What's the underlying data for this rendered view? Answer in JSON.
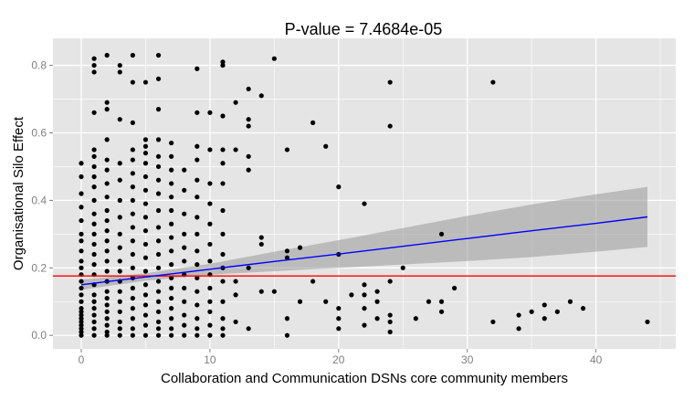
{
  "chart_data": {
    "type": "scatter",
    "title": "P-value = 7.4684e-05",
    "xlabel": "Collaboration and Communication DSNs core community members",
    "ylabel": "Organisational Silo Effect",
    "xlim": [
      -2.2,
      46.2
    ],
    "ylim": [
      -0.04,
      0.88
    ],
    "x_ticks": [
      0,
      10,
      20,
      30,
      40
    ],
    "x_tick_labels": [
      "0",
      "10",
      "20",
      "30",
      "40"
    ],
    "y_ticks": [
      0.0,
      0.2,
      0.4,
      0.6,
      0.8
    ],
    "y_tick_labels": [
      "0.0",
      "0.2",
      "0.4",
      "0.6",
      "0.8"
    ],
    "grid": true,
    "background_color": "#e5e5e5",
    "grid_color": "#ffffff",
    "point_color": "#000000",
    "hline": {
      "y": 0.176,
      "color": "#ff0000"
    },
    "regression": {
      "color": "#0000ff",
      "band_color": "#999999",
      "x": [
        0,
        5,
        10,
        15,
        20,
        25,
        30,
        35,
        40,
        44
      ],
      "y": [
        0.15,
        0.173,
        0.196,
        0.219,
        0.241,
        0.264,
        0.287,
        0.31,
        0.332,
        0.351
      ],
      "lower": [
        0.135,
        0.162,
        0.18,
        0.19,
        0.2,
        0.21,
        0.22,
        0.232,
        0.248,
        0.262
      ],
      "upper": [
        0.165,
        0.184,
        0.212,
        0.248,
        0.282,
        0.318,
        0.354,
        0.388,
        0.418,
        0.44
      ]
    },
    "points": [
      [
        0,
        0.0
      ],
      [
        0,
        0.01
      ],
      [
        0,
        0.02
      ],
      [
        0,
        0.03
      ],
      [
        0,
        0.04
      ],
      [
        0,
        0.05
      ],
      [
        0,
        0.06
      ],
      [
        0,
        0.07
      ],
      [
        0,
        0.08
      ],
      [
        0,
        0.1
      ],
      [
        0,
        0.12
      ],
      [
        0,
        0.14
      ],
      [
        0,
        0.16
      ],
      [
        0,
        0.18
      ],
      [
        0,
        0.2
      ],
      [
        0,
        0.22
      ],
      [
        0,
        0.25
      ],
      [
        0,
        0.28
      ],
      [
        0,
        0.3
      ],
      [
        0,
        0.34
      ],
      [
        0,
        0.38
      ],
      [
        0,
        0.42
      ],
      [
        0,
        0.47
      ],
      [
        0,
        0.51
      ],
      [
        1,
        0.0
      ],
      [
        1,
        0.02
      ],
      [
        1,
        0.04
      ],
      [
        1,
        0.06
      ],
      [
        1,
        0.08
      ],
      [
        1,
        0.1
      ],
      [
        1,
        0.12
      ],
      [
        1,
        0.15
      ],
      [
        1,
        0.18
      ],
      [
        1,
        0.21
      ],
      [
        1,
        0.24
      ],
      [
        1,
        0.27
      ],
      [
        1,
        0.3
      ],
      [
        1,
        0.33
      ],
      [
        1,
        0.36
      ],
      [
        1,
        0.4
      ],
      [
        1,
        0.44
      ],
      [
        1,
        0.47
      ],
      [
        1,
        0.5
      ],
      [
        1,
        0.53
      ],
      [
        1,
        0.55
      ],
      [
        1,
        0.66
      ],
      [
        1,
        0.78
      ],
      [
        1,
        0.8
      ],
      [
        1,
        0.82
      ],
      [
        2,
        0.0
      ],
      [
        2,
        0.01
      ],
      [
        2,
        0.03
      ],
      [
        2,
        0.05
      ],
      [
        2,
        0.07
      ],
      [
        2,
        0.09
      ],
      [
        2,
        0.11
      ],
      [
        2,
        0.13
      ],
      [
        2,
        0.16
      ],
      [
        2,
        0.19
      ],
      [
        2,
        0.22
      ],
      [
        2,
        0.25
      ],
      [
        2,
        0.28
      ],
      [
        2,
        0.31
      ],
      [
        2,
        0.34
      ],
      [
        2,
        0.37
      ],
      [
        2,
        0.41
      ],
      [
        2,
        0.45
      ],
      [
        2,
        0.49
      ],
      [
        2,
        0.52
      ],
      [
        2,
        0.58
      ],
      [
        2,
        0.67
      ],
      [
        2,
        0.69
      ],
      [
        2,
        0.83
      ],
      [
        3,
        0.0
      ],
      [
        3,
        0.02
      ],
      [
        3,
        0.04
      ],
      [
        3,
        0.07
      ],
      [
        3,
        0.1
      ],
      [
        3,
        0.13
      ],
      [
        3,
        0.16
      ],
      [
        3,
        0.19
      ],
      [
        3,
        0.22
      ],
      [
        3,
        0.26
      ],
      [
        3,
        0.3
      ],
      [
        3,
        0.35
      ],
      [
        3,
        0.4
      ],
      [
        3,
        0.46
      ],
      [
        3,
        0.51
      ],
      [
        3,
        0.64
      ],
      [
        3,
        0.78
      ],
      [
        3,
        0.8
      ],
      [
        4,
        0.0
      ],
      [
        4,
        0.02
      ],
      [
        4,
        0.05
      ],
      [
        4,
        0.08
      ],
      [
        4,
        0.11
      ],
      [
        4,
        0.14
      ],
      [
        4,
        0.17
      ],
      [
        4,
        0.2
      ],
      [
        4,
        0.24
      ],
      [
        4,
        0.28
      ],
      [
        4,
        0.32
      ],
      [
        4,
        0.36
      ],
      [
        4,
        0.4
      ],
      [
        4,
        0.44
      ],
      [
        4,
        0.48
      ],
      [
        4,
        0.52
      ],
      [
        4,
        0.55
      ],
      [
        4,
        0.63
      ],
      [
        4,
        0.75
      ],
      [
        4,
        0.83
      ],
      [
        5,
        0.0
      ],
      [
        5,
        0.03
      ],
      [
        5,
        0.06
      ],
      [
        5,
        0.09
      ],
      [
        5,
        0.12
      ],
      [
        5,
        0.15
      ],
      [
        5,
        0.19
      ],
      [
        5,
        0.23
      ],
      [
        5,
        0.27
      ],
      [
        5,
        0.31
      ],
      [
        5,
        0.35
      ],
      [
        5,
        0.39
      ],
      [
        5,
        0.43
      ],
      [
        5,
        0.47
      ],
      [
        5,
        0.51
      ],
      [
        5,
        0.54
      ],
      [
        5,
        0.56
      ],
      [
        5,
        0.58
      ],
      [
        5,
        0.75
      ],
      [
        6,
        0.0
      ],
      [
        6,
        0.02
      ],
      [
        6,
        0.04
      ],
      [
        6,
        0.07
      ],
      [
        6,
        0.1
      ],
      [
        6,
        0.13
      ],
      [
        6,
        0.16
      ],
      [
        6,
        0.2
      ],
      [
        6,
        0.24
      ],
      [
        6,
        0.28
      ],
      [
        6,
        0.32
      ],
      [
        6,
        0.37
      ],
      [
        6,
        0.42
      ],
      [
        6,
        0.46
      ],
      [
        6,
        0.5
      ],
      [
        6,
        0.53
      ],
      [
        6,
        0.58
      ],
      [
        6,
        0.67
      ],
      [
        6,
        0.76
      ],
      [
        6,
        0.83
      ],
      [
        7,
        0.0
      ],
      [
        7,
        0.02
      ],
      [
        7,
        0.05
      ],
      [
        7,
        0.08
      ],
      [
        7,
        0.11
      ],
      [
        7,
        0.14
      ],
      [
        7,
        0.17
      ],
      [
        7,
        0.21
      ],
      [
        7,
        0.25
      ],
      [
        7,
        0.29
      ],
      [
        7,
        0.33
      ],
      [
        7,
        0.37
      ],
      [
        7,
        0.41
      ],
      [
        7,
        0.45
      ],
      [
        7,
        0.49
      ],
      [
        7,
        0.53
      ],
      [
        7,
        0.57
      ],
      [
        8,
        0.0
      ],
      [
        8,
        0.03
      ],
      [
        8,
        0.06
      ],
      [
        8,
        0.1
      ],
      [
        8,
        0.14
      ],
      [
        8,
        0.18
      ],
      [
        8,
        0.22
      ],
      [
        8,
        0.26
      ],
      [
        8,
        0.3
      ],
      [
        8,
        0.36
      ],
      [
        8,
        0.43
      ],
      [
        8,
        0.49
      ],
      [
        9,
        0.0
      ],
      [
        9,
        0.02
      ],
      [
        9,
        0.05
      ],
      [
        9,
        0.09
      ],
      [
        9,
        0.13
      ],
      [
        9,
        0.17
      ],
      [
        9,
        0.21
      ],
      [
        9,
        0.25
      ],
      [
        9,
        0.3
      ],
      [
        9,
        0.35
      ],
      [
        9,
        0.41
      ],
      [
        9,
        0.46
      ],
      [
        9,
        0.52
      ],
      [
        9,
        0.56
      ],
      [
        9,
        0.66
      ],
      [
        9,
        0.79
      ],
      [
        10,
        0.0
      ],
      [
        10,
        0.03
      ],
      [
        10,
        0.07
      ],
      [
        10,
        0.1
      ],
      [
        10,
        0.14
      ],
      [
        10,
        0.18
      ],
      [
        10,
        0.22
      ],
      [
        10,
        0.27
      ],
      [
        10,
        0.33
      ],
      [
        10,
        0.39
      ],
      [
        10,
        0.45
      ],
      [
        10,
        0.55
      ],
      [
        10,
        0.66
      ],
      [
        11,
        0.0
      ],
      [
        11,
        0.02
      ],
      [
        11,
        0.05
      ],
      [
        11,
        0.1
      ],
      [
        11,
        0.16
      ],
      [
        11,
        0.2
      ],
      [
        11,
        0.24
      ],
      [
        11,
        0.3
      ],
      [
        11,
        0.37
      ],
      [
        11,
        0.45
      ],
      [
        11,
        0.51
      ],
      [
        11,
        0.55
      ],
      [
        11,
        0.65
      ],
      [
        11,
        0.8
      ],
      [
        11,
        0.81
      ],
      [
        12,
        0.04
      ],
      [
        12,
        0.12
      ],
      [
        12,
        0.16
      ],
      [
        12,
        0.55
      ],
      [
        12,
        0.69
      ],
      [
        13,
        0.02
      ],
      [
        13,
        0.2
      ],
      [
        13,
        0.49
      ],
      [
        13,
        0.53
      ],
      [
        13,
        0.62
      ],
      [
        13,
        0.64
      ],
      [
        13,
        0.73
      ],
      [
        14,
        0.13
      ],
      [
        14,
        0.27
      ],
      [
        14,
        0.29
      ],
      [
        14,
        0.71
      ],
      [
        15,
        0.13
      ],
      [
        15,
        0.82
      ],
      [
        16,
        0.0
      ],
      [
        16,
        0.05
      ],
      [
        16,
        0.23
      ],
      [
        16,
        0.25
      ],
      [
        16,
        0.55
      ],
      [
        17,
        0.1
      ],
      [
        17,
        0.26
      ],
      [
        18,
        0.16
      ],
      [
        18,
        0.63
      ],
      [
        19,
        0.1
      ],
      [
        19,
        0.56
      ],
      [
        20,
        0.02
      ],
      [
        20,
        0.05
      ],
      [
        20,
        0.08
      ],
      [
        20,
        0.24
      ],
      [
        20,
        0.44
      ],
      [
        21,
        0.12
      ],
      [
        22,
        0.03
      ],
      [
        22,
        0.08
      ],
      [
        22,
        0.12
      ],
      [
        22,
        0.15
      ],
      [
        22,
        0.39
      ],
      [
        23,
        0.05
      ],
      [
        23,
        0.1
      ],
      [
        23,
        0.13
      ],
      [
        24,
        0.01
      ],
      [
        24,
        0.04
      ],
      [
        24,
        0.06
      ],
      [
        24,
        0.16
      ],
      [
        24,
        0.62
      ],
      [
        24,
        0.75
      ],
      [
        25,
        0.2
      ],
      [
        26,
        0.05
      ],
      [
        27,
        0.1
      ],
      [
        28,
        0.07
      ],
      [
        28,
        0.1
      ],
      [
        28,
        0.3
      ],
      [
        29,
        0.14
      ],
      [
        32,
        0.04
      ],
      [
        32,
        0.75
      ],
      [
        34,
        0.02
      ],
      [
        34,
        0.06
      ],
      [
        35,
        0.07
      ],
      [
        36,
        0.05
      ],
      [
        36,
        0.09
      ],
      [
        37,
        0.07
      ],
      [
        38,
        0.1
      ],
      [
        39,
        0.08
      ],
      [
        44,
        0.04
      ]
    ]
  }
}
